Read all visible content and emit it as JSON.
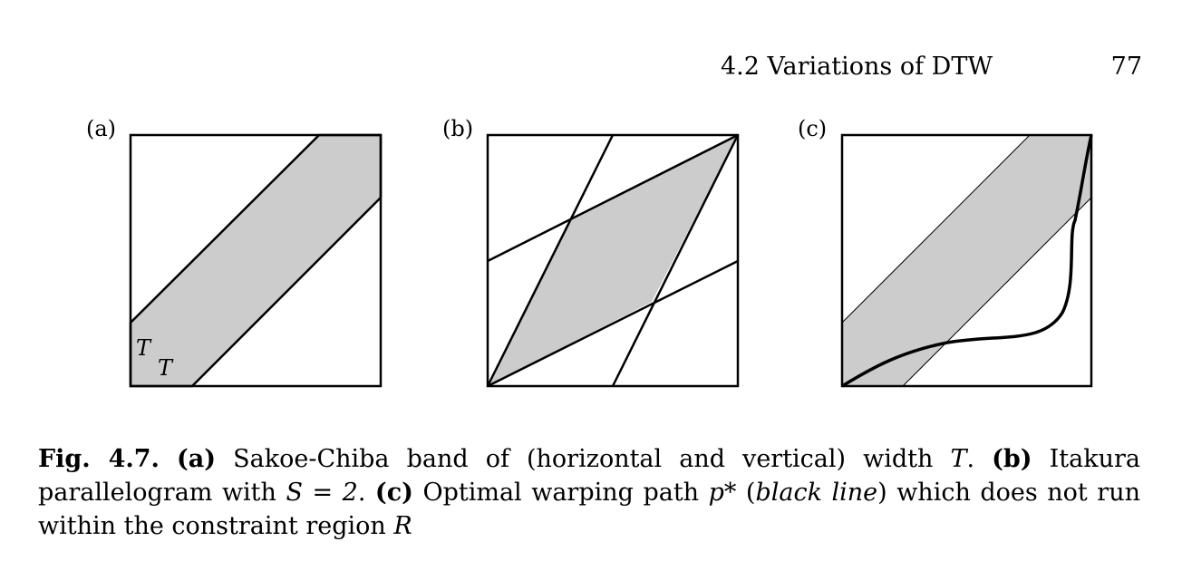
{
  "running_head": {
    "section": "4.2  Variations of DTW",
    "page_number": "77"
  },
  "figure": {
    "panels": [
      {
        "label": "(a)",
        "band_labels": [
          "T",
          "T"
        ]
      },
      {
        "label": "(b)"
      },
      {
        "label": "(c)"
      }
    ],
    "colors": {
      "region_fill": "#cccccc",
      "stroke": "#000000"
    }
  },
  "caption": {
    "fig_label": "Fig. 4.7.",
    "a_label": "(a)",
    "a_text": " Sakoe-Chiba band of (horizontal and vertical) width ",
    "a_var": "T",
    "a_end": ". ",
    "b_label": "(b)",
    "b_text": " Itakura parallelogram with ",
    "b_eq": "S = 2",
    "b_end": ". ",
    "c_label": "(c)",
    "c_text": " Optimal warping path ",
    "c_var": "p*",
    "c_paren_open": " (",
    "c_italic": "black line",
    "c_paren_close": ")",
    "c_rest": " which does not run within the constraint region ",
    "c_region": "R"
  }
}
